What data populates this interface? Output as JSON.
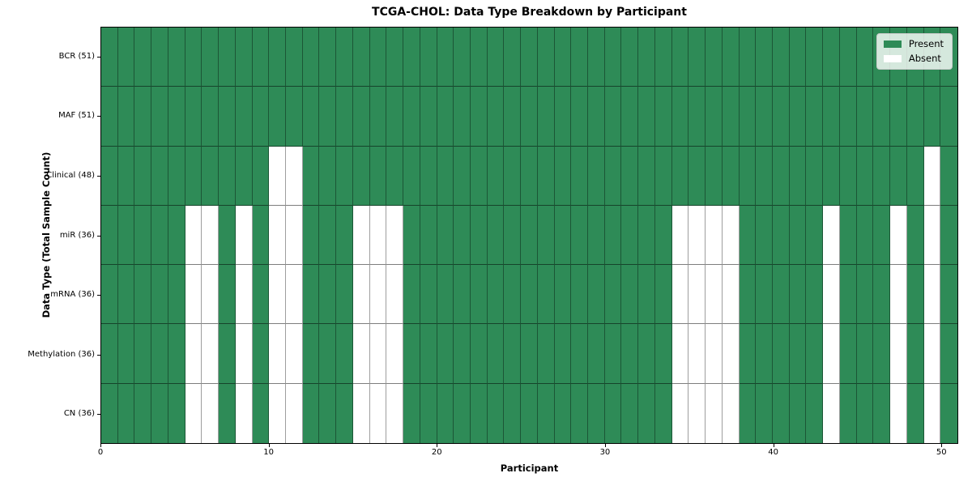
{
  "chart_data": {
    "type": "heatmap",
    "title": "TCGA-CHOL: Data Type Breakdown by Participant",
    "xlabel": "Participant",
    "ylabel": "Data Type (Total Sample Count)",
    "n_participants": 51,
    "x_ticks": [
      0,
      10,
      20,
      30,
      40,
      50
    ],
    "present_color": "#2e8b57",
    "absent_color": "#ffffff",
    "grid_on": true,
    "legend_position": "upper right",
    "legend": [
      {
        "label": "Present",
        "color": "#2e8b57"
      },
      {
        "label": "Absent",
        "color": "#ffffff"
      }
    ],
    "rows": [
      {
        "label": "BCR (51)",
        "data_type": "BCR",
        "total_samples": 51,
        "absent_participants": []
      },
      {
        "label": "MAF (51)",
        "data_type": "MAF",
        "total_samples": 51,
        "absent_participants": []
      },
      {
        "label": "Clinical (48)",
        "data_type": "Clinical",
        "total_samples": 48,
        "absent_participants": [
          10,
          11,
          49
        ]
      },
      {
        "label": "miR (36)",
        "data_type": "miR",
        "total_samples": 36,
        "absent_participants": [
          5,
          6,
          8,
          10,
          11,
          15,
          16,
          17,
          34,
          35,
          36,
          37,
          43,
          47,
          49
        ]
      },
      {
        "label": "mRNA (36)",
        "data_type": "mRNA",
        "total_samples": 36,
        "absent_participants": [
          5,
          6,
          8,
          10,
          11,
          15,
          16,
          17,
          34,
          35,
          36,
          37,
          43,
          47,
          49
        ]
      },
      {
        "label": "Methylation (36)",
        "data_type": "Methylation",
        "total_samples": 36,
        "absent_participants": [
          5,
          6,
          8,
          10,
          11,
          15,
          16,
          17,
          34,
          35,
          36,
          37,
          43,
          47,
          49
        ]
      },
      {
        "label": "CN (36)",
        "data_type": "CN",
        "total_samples": 36,
        "absent_participants": [
          5,
          6,
          8,
          10,
          11,
          15,
          16,
          17,
          34,
          35,
          36,
          37,
          43,
          47,
          49
        ]
      }
    ]
  }
}
